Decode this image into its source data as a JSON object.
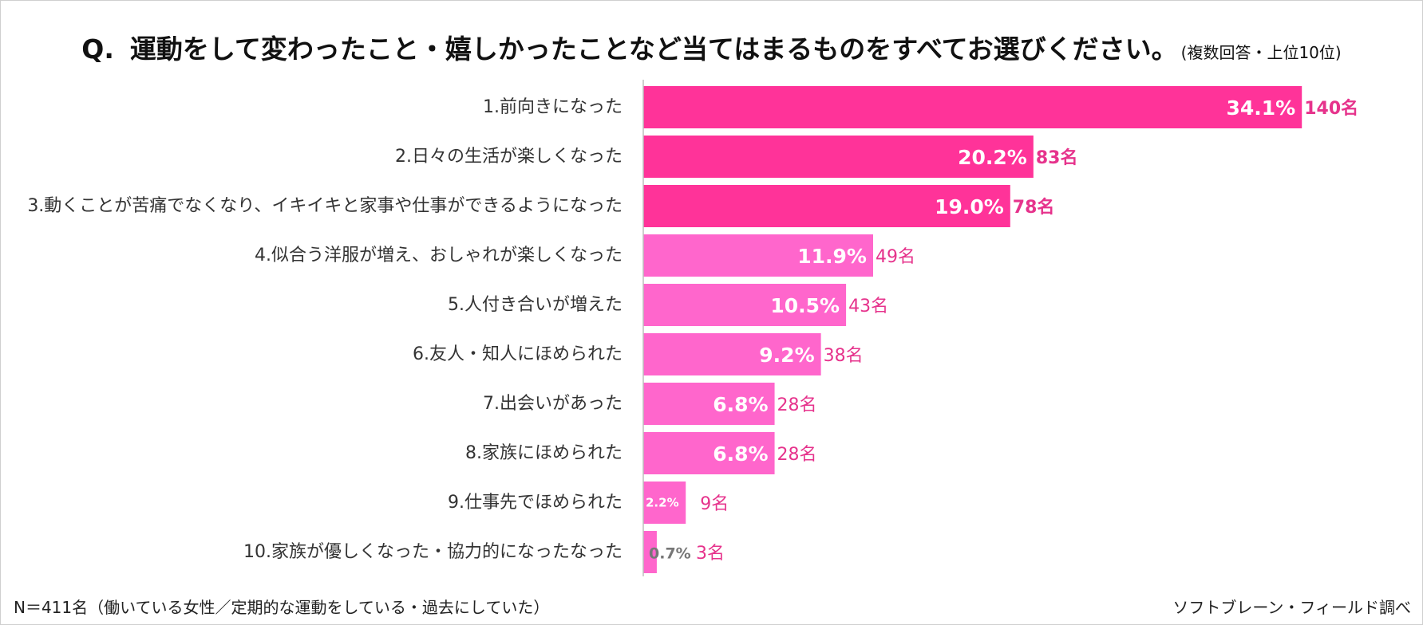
{
  "title": {
    "q_prefix": "Q.",
    "main": "運動をして変わったこと・嬉しかったことなど当てはまるものをすべてお選びください。",
    "suffix": "(複数回答・上位10位)"
  },
  "footnote": "N＝411名（働いている女性／定期的な運動をしている・過去にしていた）",
  "source": "ソフトブレーン・フィールド調べ",
  "colors": {
    "dark": "#FF3399",
    "light": "#FF66CC",
    "count_text": "#E6338C",
    "small_label": "#777777"
  },
  "chart_data": {
    "type": "bar",
    "orientation": "horizontal",
    "categories": [
      "1.前向きになった",
      "2.日々の生活が楽しくなった",
      "3.動くことが苦痛でなくなり、イキイキと家事や仕事ができるようになった",
      "4.似合う洋服が増え、おしゃれが楽しくなった",
      "5.人付き合いが増えた",
      "6.友人・知人にほめられた",
      "7.出会いがあった",
      "8.家族にほめられた",
      "9.仕事先でほめられた",
      "10.家族が優しくなった・協力的になったなった"
    ],
    "values": [
      34.1,
      20.2,
      19.0,
      11.9,
      10.5,
      9.2,
      6.8,
      6.8,
      2.2,
      0.7
    ],
    "value_labels": [
      "34.1%",
      "20.2%",
      "19.0%",
      "11.9%",
      "10.5%",
      "9.2%",
      "6.8%",
      "6.8%",
      "2.2%",
      "0.7%"
    ],
    "counts": [
      "140名",
      "83名",
      "78名",
      "49名",
      "43名",
      "38名",
      "28名",
      "28名",
      "9名",
      "3名"
    ],
    "highlight_top": 3,
    "xlim": [
      0,
      40
    ],
    "grid": false,
    "legend": "none"
  }
}
